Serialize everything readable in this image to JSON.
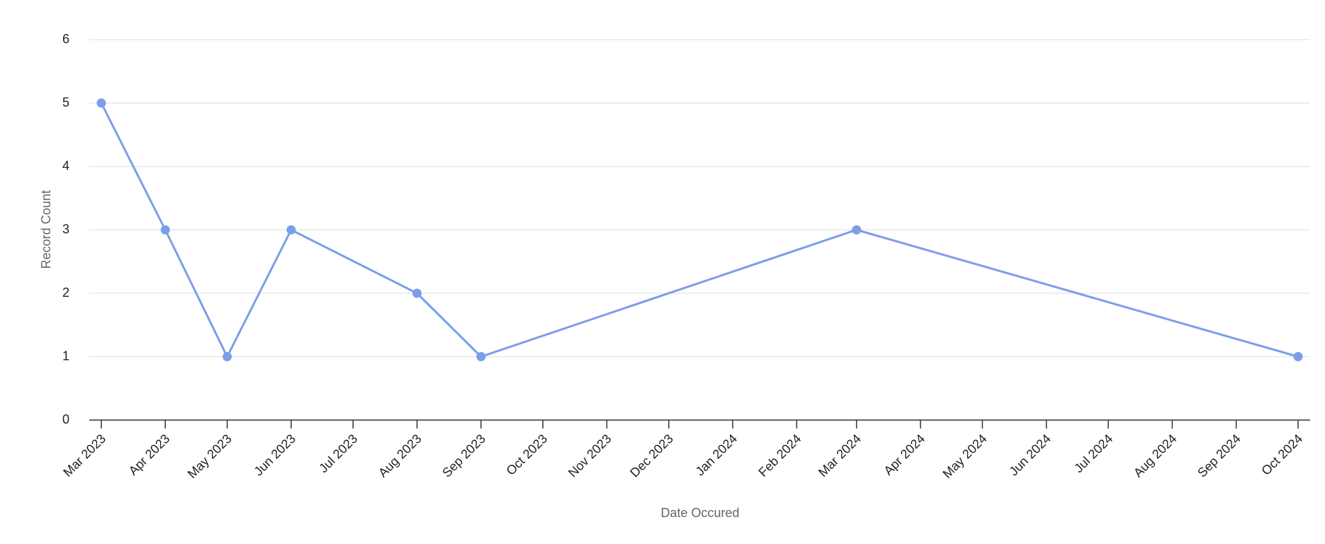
{
  "chart_data": {
    "type": "line",
    "x_label": "Date Occured",
    "y_label": "Record Count",
    "series": [
      {
        "color": "#7b9ee8",
        "x": [
          "Mar 2023",
          "Apr 2023",
          "May 2023",
          "Jun 2023",
          "Aug 2023",
          "Sep 2023",
          "Mar 2024",
          "Oct 2024"
        ],
        "values": [
          5,
          3,
          1,
          3,
          2,
          1,
          3,
          1
        ]
      }
    ],
    "xlim": [
      "Mar 2023",
      "Oct 2024"
    ],
    "xticks": [
      "Mar 2023",
      "Apr 2023",
      "May 2023",
      "Jun 2023",
      "Jul 2023",
      "Aug 2023",
      "Sep 2023",
      "Oct 2023",
      "Nov 2023",
      "Dec 2023",
      "Jan 2024",
      "Feb 2024",
      "Mar 2024",
      "Apr 2024",
      "May 2024",
      "Jun 2024",
      "Jul 2024",
      "Aug 2024",
      "Sep 2024",
      "Oct 2024"
    ],
    "ylim": [
      0,
      6
    ],
    "yticks": [
      0,
      1,
      2,
      3,
      4,
      5,
      6
    ],
    "grid": true
  }
}
